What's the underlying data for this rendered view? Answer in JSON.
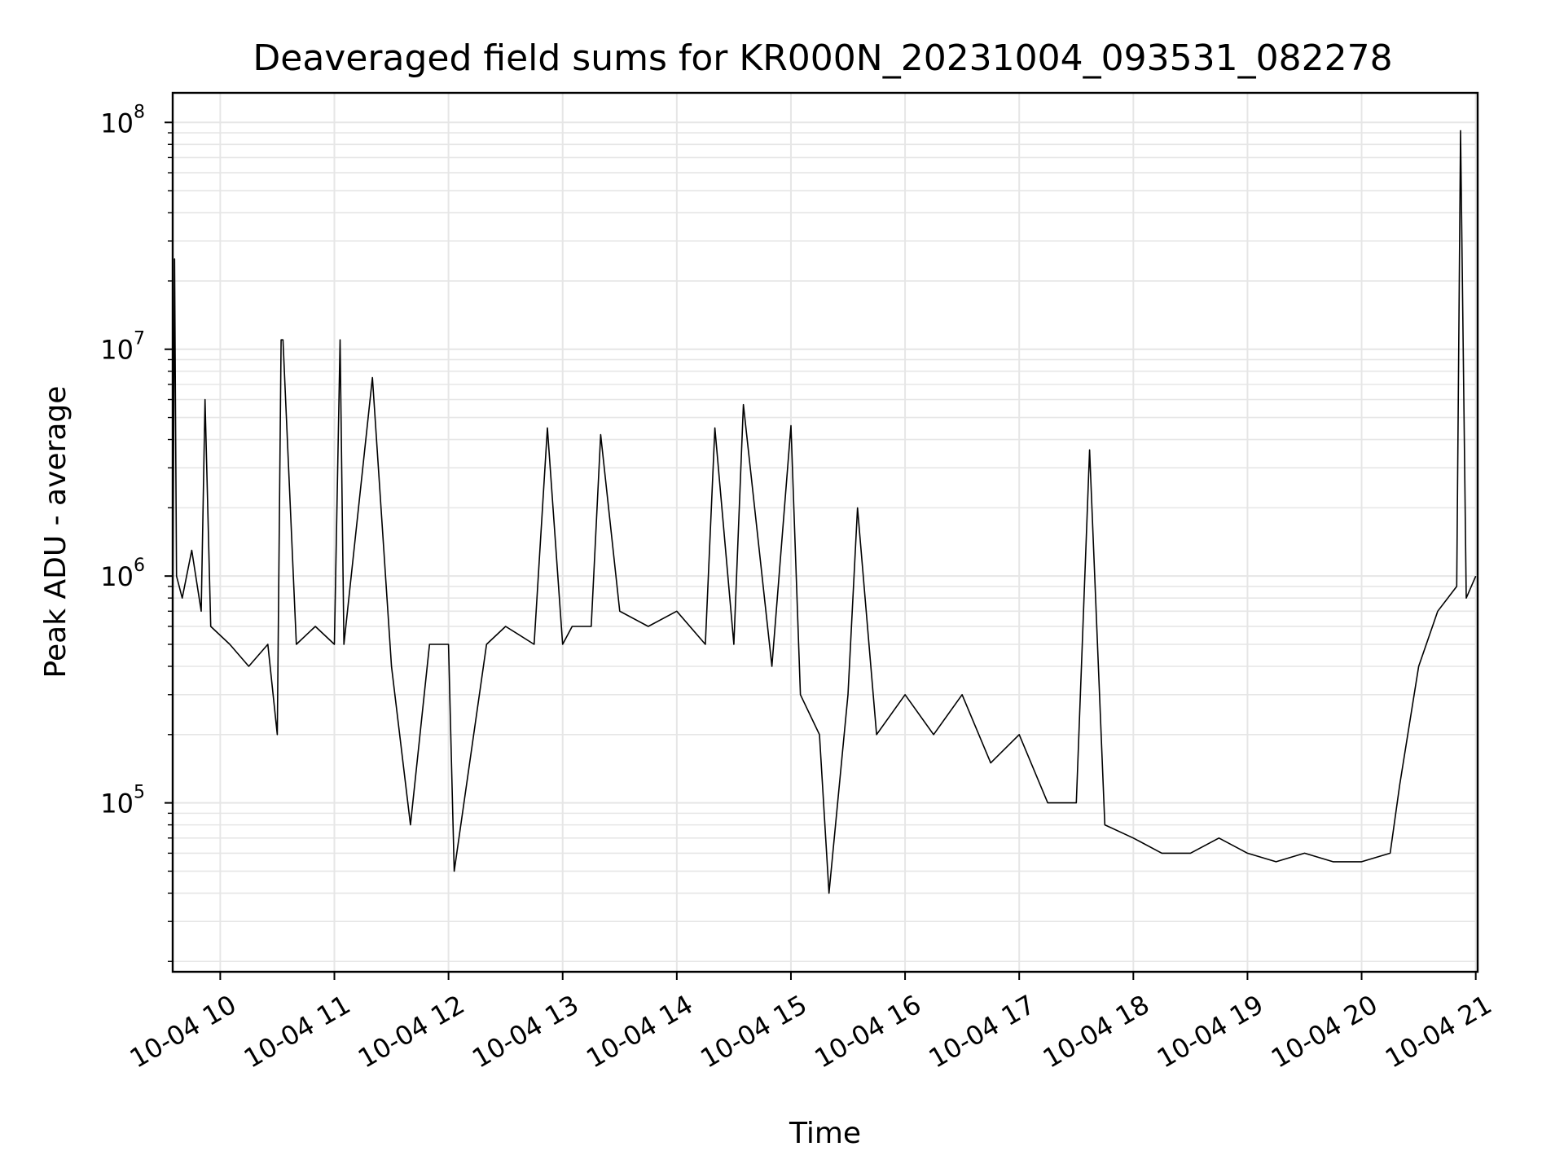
{
  "chart_data": {
    "type": "line",
    "title": "Deaveraged field sums for KR000N_20231004_093531_082278",
    "xlabel": "Time",
    "ylabel": "Peak ADU - average",
    "yscale": "log",
    "xlim": [
      "10-04 09:35",
      "10-04 21:01"
    ],
    "ylim": [
      18000,
      135000000
    ],
    "grid": true,
    "x_ticks": [
      "10-04 10",
      "10-04 11",
      "10-04 12",
      "10-04 13",
      "10-04 14",
      "10-04 15",
      "10-04 16",
      "10-04 17",
      "10-04 18",
      "10-04 19",
      "10-04 20",
      "10-04 21"
    ],
    "y_ticks": [
      {
        "value": 100000,
        "base": "10",
        "exp": "5"
      },
      {
        "value": 1000000,
        "base": "10",
        "exp": "6"
      },
      {
        "value": 10000000,
        "base": "10",
        "exp": "7"
      },
      {
        "value": 100000000,
        "base": "10",
        "exp": "8"
      }
    ],
    "line_color": "#000000",
    "grid_color": "#e6e6e6",
    "series": [
      {
        "points": [
          [
            "10-04 09:35",
            600000
          ],
          [
            "10-04 09:36",
            25000000
          ],
          [
            "10-04 09:37",
            1000000
          ],
          [
            "10-04 09:40",
            800000
          ],
          [
            "10-04 09:45",
            1300000
          ],
          [
            "10-04 09:50",
            700000
          ],
          [
            "10-04 09:52",
            6000000
          ],
          [
            "10-04 09:55",
            600000
          ],
          [
            "10-04 10:05",
            500000
          ],
          [
            "10-04 10:15",
            400000
          ],
          [
            "10-04 10:25",
            500000
          ],
          [
            "10-04 10:30",
            200000
          ],
          [
            "10-04 10:32",
            11000000
          ],
          [
            "10-04 10:33",
            11000000
          ],
          [
            "10-04 10:40",
            500000
          ],
          [
            "10-04 10:50",
            600000
          ],
          [
            "10-04 11:00",
            500000
          ],
          [
            "10-04 11:03",
            11000000
          ],
          [
            "10-04 11:05",
            500000
          ],
          [
            "10-04 11:20",
            7500000
          ],
          [
            "10-04 11:30",
            400000
          ],
          [
            "10-04 11:40",
            80000
          ],
          [
            "10-04 11:50",
            500000
          ],
          [
            "10-04 12:00",
            500000
          ],
          [
            "10-04 12:03",
            50000
          ],
          [
            "10-04 12:20",
            500000
          ],
          [
            "10-04 12:30",
            600000
          ],
          [
            "10-04 12:45",
            500000
          ],
          [
            "10-04 12:52",
            4500000
          ],
          [
            "10-04 13:00",
            500000
          ],
          [
            "10-04 13:05",
            600000
          ],
          [
            "10-04 13:15",
            600000
          ],
          [
            "10-04 13:20",
            4200000
          ],
          [
            "10-04 13:30",
            700000
          ],
          [
            "10-04 13:45",
            600000
          ],
          [
            "10-04 14:00",
            700000
          ],
          [
            "10-04 14:15",
            500000
          ],
          [
            "10-04 14:20",
            4500000
          ],
          [
            "10-04 14:30",
            500000
          ],
          [
            "10-04 14:35",
            5700000
          ],
          [
            "10-04 14:50",
            400000
          ],
          [
            "10-04 15:00",
            4600000
          ],
          [
            "10-04 15:05",
            300000
          ],
          [
            "10-04 15:15",
            200000
          ],
          [
            "10-04 15:20",
            40000
          ],
          [
            "10-04 15:30",
            300000
          ],
          [
            "10-04 15:35",
            2000000
          ],
          [
            "10-04 15:45",
            200000
          ],
          [
            "10-04 16:00",
            300000
          ],
          [
            "10-04 16:15",
            200000
          ],
          [
            "10-04 16:30",
            300000
          ],
          [
            "10-04 16:45",
            150000
          ],
          [
            "10-04 17:00",
            200000
          ],
          [
            "10-04 17:15",
            100000
          ],
          [
            "10-04 17:30",
            100000
          ],
          [
            "10-04 17:37",
            3600000
          ],
          [
            "10-04 17:45",
            80000
          ],
          [
            "10-04 18:00",
            70000
          ],
          [
            "10-04 18:15",
            60000
          ],
          [
            "10-04 18:30",
            60000
          ],
          [
            "10-04 18:45",
            70000
          ],
          [
            "10-04 19:00",
            60000
          ],
          [
            "10-04 19:15",
            55000
          ],
          [
            "10-04 19:30",
            60000
          ],
          [
            "10-04 19:45",
            55000
          ],
          [
            "10-04 20:00",
            55000
          ],
          [
            "10-04 20:15",
            60000
          ],
          [
            "10-04 20:20",
            120000
          ],
          [
            "10-04 20:30",
            400000
          ],
          [
            "10-04 20:40",
            700000
          ],
          [
            "10-04 20:50",
            900000
          ],
          [
            "10-04 20:52",
            92000000
          ],
          [
            "10-04 20:55",
            800000
          ],
          [
            "10-04 21:00",
            1000000
          ]
        ]
      }
    ]
  }
}
